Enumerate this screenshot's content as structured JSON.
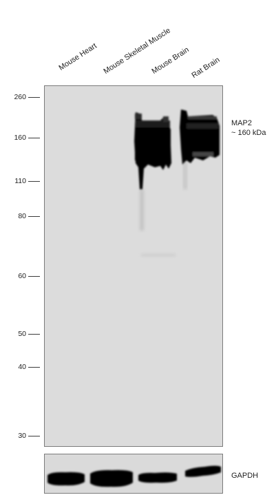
{
  "lanes": [
    "Mouse Heart",
    "Mouse Skeletal Muscle",
    "Mouse Brain",
    "Rat Brain"
  ],
  "mw_markers": [
    "260",
    "160",
    "110",
    "80",
    "60",
    "50",
    "40",
    "30"
  ],
  "target": {
    "name": "MAP2",
    "size": "~ 160 kDa"
  },
  "loading_control": "GAPDH"
}
